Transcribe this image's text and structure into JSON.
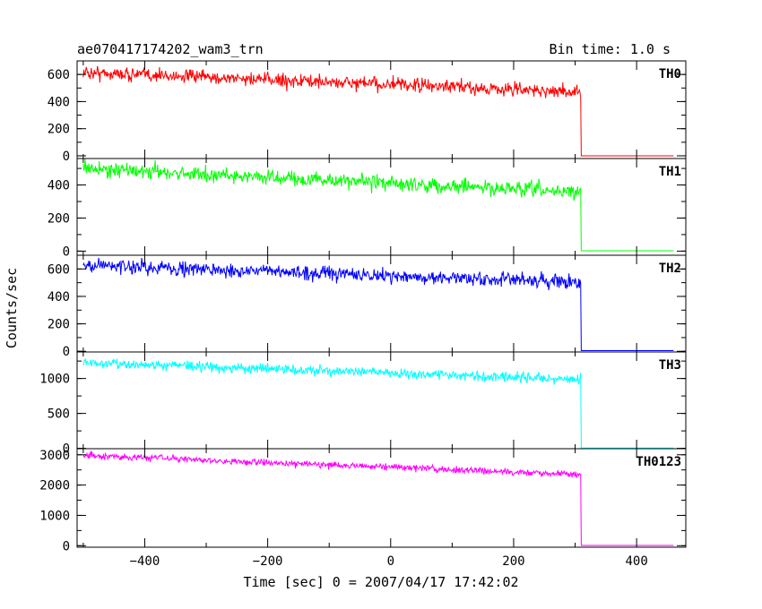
{
  "chart_data": {
    "type": "line",
    "title": "ae070417174202_wam3_trn",
    "subtitle": "Bin time: 1.0 s",
    "xlabel": "Time [sec] 0 = 2007/04/17 17:42:02",
    "ylabel": "Counts/sec",
    "xlim": [
      -510,
      480
    ],
    "xticks": [
      -400,
      -200,
      0,
      200,
      400
    ],
    "x_range": [
      -500,
      460
    ],
    "drop_time": 309,
    "grid": false,
    "panels": [
      {
        "name": "TH0",
        "color": "#ff0000",
        "ylim": [
          -20,
          700
        ],
        "yticks": [
          0,
          200,
          400,
          600
        ],
        "start": 615,
        "end": 470,
        "noise": 25,
        "after": 0
      },
      {
        "name": "TH1",
        "color": "#00ff00",
        "ylim": [
          -25,
          560
        ],
        "yticks": [
          0,
          200,
          400
        ],
        "start": 500,
        "end": 355,
        "noise": 22,
        "after": 2
      },
      {
        "name": "TH2",
        "color": "#0000ff",
        "ylim": [
          -5,
          700
        ],
        "yticks": [
          0,
          200,
          400,
          600
        ],
        "start": 630,
        "end": 500,
        "noise": 25,
        "after": 5
      },
      {
        "name": "TH3",
        "color": "#00ffff",
        "ylim": [
          -5,
          1380
        ],
        "yticks": [
          0,
          500,
          1000
        ],
        "start": 1230,
        "end": 985,
        "noise": 35,
        "after": 5
      },
      {
        "name": "TH0123",
        "color": "#ff00ff",
        "ylim": [
          -50,
          3200
        ],
        "yticks": [
          0,
          1000,
          2000,
          3000
        ],
        "start": 2980,
        "end": 2350,
        "noise": 55,
        "after": 10
      }
    ]
  }
}
